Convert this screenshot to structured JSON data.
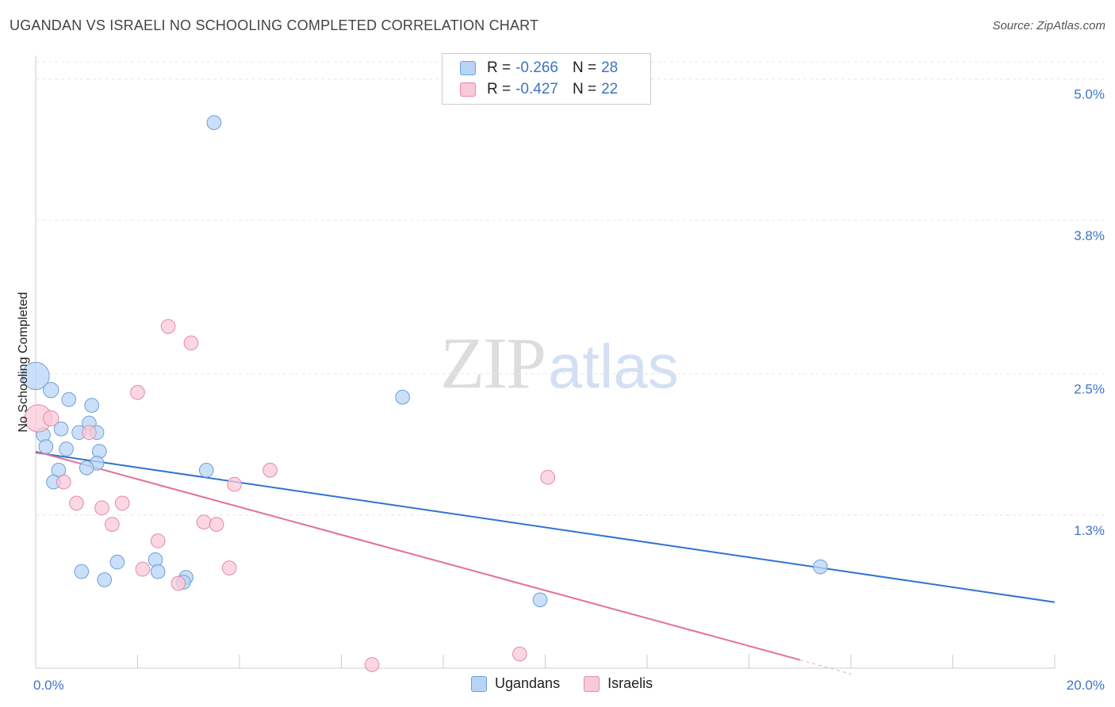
{
  "header": {
    "title": "UGANDAN VS ISRAELI NO SCHOOLING COMPLETED CORRELATION CHART",
    "source": "Source: ZipAtlas.com"
  },
  "watermark": {
    "zip": "ZIP",
    "atlas": "atlas"
  },
  "legend": {
    "rows": [
      {
        "r_label": "R =",
        "r_value": "-0.266",
        "n_label": "N =",
        "n_value": "28"
      },
      {
        "r_label": "R =",
        "r_value": "-0.427",
        "n_label": "N =",
        "n_value": "22"
      }
    ]
  },
  "bottom_legend": {
    "ugandans": "Ugandans",
    "israelis": "Israelis"
  },
  "colors": {
    "ugandans_fill": "#b8d4f5",
    "ugandans_stroke": "#6f9fd8",
    "ugandans_line": "#2f74d0",
    "israelis_fill": "#f8c9d8",
    "israelis_stroke": "#e48aa8",
    "israelis_line": "#e0709a",
    "grid": "#e6e6e6",
    "axis_text": "#3d74c5"
  },
  "chart_data": {
    "type": "scatter",
    "title": "UGANDAN VS ISRAELI NO SCHOOLING COMPLETED CORRELATION CHART",
    "xlabel": "",
    "ylabel": "No Schooling Completed",
    "xlim": [
      0,
      20
    ],
    "ylim": [
      0,
      5.2
    ],
    "x_tick_labels": [
      "0.0%",
      "20.0%"
    ],
    "y_ticks": [
      1.3,
      2.5,
      3.8,
      5.0
    ],
    "y_tick_labels": [
      "1.3%",
      "2.5%",
      "3.8%",
      "5.0%"
    ],
    "grid": true,
    "series": [
      {
        "name": "Ugandans",
        "points": [
          [
            0.0,
            2.48,
            20
          ],
          [
            0.3,
            2.36,
            11
          ],
          [
            0.65,
            2.28,
            10
          ],
          [
            1.1,
            2.23,
            10
          ],
          [
            1.05,
            2.08,
            10
          ],
          [
            0.5,
            2.03,
            10
          ],
          [
            0.85,
            2.0,
            10
          ],
          [
            1.2,
            2.0,
            10
          ],
          [
            0.15,
            1.98,
            10
          ],
          [
            0.2,
            1.88,
            10
          ],
          [
            0.6,
            1.86,
            10
          ],
          [
            1.25,
            1.84,
            10
          ],
          [
            1.2,
            1.74,
            10
          ],
          [
            1.0,
            1.7,
            10
          ],
          [
            0.45,
            1.68,
            10
          ],
          [
            0.35,
            1.58,
            10
          ],
          [
            3.35,
            1.68,
            10
          ],
          [
            3.5,
            4.63,
            10
          ],
          [
            7.2,
            2.3,
            10
          ],
          [
            2.35,
            0.92,
            10
          ],
          [
            1.6,
            0.9,
            10
          ],
          [
            0.9,
            0.82,
            10
          ],
          [
            2.4,
            0.82,
            10
          ],
          [
            1.35,
            0.75,
            10
          ],
          [
            2.95,
            0.77,
            10
          ],
          [
            2.9,
            0.73,
            10
          ],
          [
            9.9,
            0.58,
            10
          ],
          [
            15.4,
            0.86,
            10
          ]
        ],
        "trend": {
          "x": [
            0,
            20
          ],
          "y": [
            1.83,
            0.56
          ]
        }
      },
      {
        "name": "Israelis",
        "points": [
          [
            0.05,
            2.12,
            20
          ],
          [
            0.3,
            2.12,
            11
          ],
          [
            1.05,
            2.0,
            10
          ],
          [
            2.6,
            2.9,
            10
          ],
          [
            3.05,
            2.76,
            10
          ],
          [
            2.0,
            2.34,
            10
          ],
          [
            4.6,
            1.68,
            10
          ],
          [
            0.55,
            1.58,
            10
          ],
          [
            3.9,
            1.56,
            10
          ],
          [
            10.05,
            1.62,
            10
          ],
          [
            0.8,
            1.4,
            10
          ],
          [
            1.3,
            1.36,
            10
          ],
          [
            1.7,
            1.4,
            10
          ],
          [
            1.5,
            1.22,
            10
          ],
          [
            3.3,
            1.24,
            10
          ],
          [
            3.55,
            1.22,
            10
          ],
          [
            2.4,
            1.08,
            10
          ],
          [
            2.1,
            0.84,
            10
          ],
          [
            3.8,
            0.85,
            10
          ],
          [
            2.8,
            0.72,
            10
          ],
          [
            9.5,
            0.12,
            10
          ],
          [
            6.6,
            0.03,
            10
          ]
        ],
        "trend": {
          "x": [
            0,
            15.0
          ],
          "y": [
            1.84,
            0.07
          ]
        },
        "trend_extension": {
          "x": [
            15.0,
            16.0
          ],
          "y": [
            0.07,
            -0.05
          ]
        }
      }
    ]
  }
}
